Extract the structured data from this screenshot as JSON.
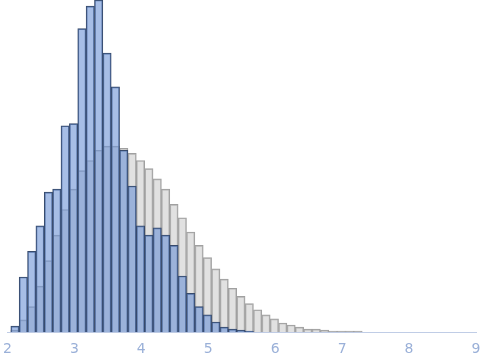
{
  "chart_data": {
    "type": "histogram",
    "bins": [
      2.05,
      2.175,
      2.3,
      2.425,
      2.55,
      2.675,
      2.8,
      2.925,
      3.05,
      3.175,
      3.3,
      3.425,
      3.55,
      3.675,
      3.8,
      3.925,
      4.05,
      4.175,
      4.3,
      4.425,
      4.55,
      4.675,
      4.8,
      4.925,
      5.05,
      5.175,
      5.3,
      5.425,
      5.55,
      5.675,
      5.8,
      5.925,
      6.05,
      6.175,
      6.3,
      6.425,
      6.55,
      6.675,
      6.8,
      6.925,
      7.05,
      7.175,
      7.3,
      7.425
    ],
    "series": [
      {
        "color": "#c8c8c8",
        "values": [
          2,
          12,
          25,
          45,
          70,
          95,
          120,
          140,
          158,
          168,
          178,
          182,
          182,
          180,
          175,
          168,
          160,
          150,
          140,
          125,
          112,
          98,
          85,
          73,
          62,
          52,
          43,
          35,
          28,
          22,
          17,
          13,
          9,
          7,
          5,
          3,
          3,
          2,
          1,
          1,
          1,
          1,
          0
        ]
      },
      {
        "color": "#6d93d6",
        "values": [
          6,
          54,
          79,
          104,
          137,
          140,
          202,
          204,
          297,
          319,
          325,
          273,
          240,
          178,
          143,
          104,
          95,
          102,
          95,
          85,
          55,
          38,
          25,
          17,
          10,
          5,
          3,
          2,
          1,
          0,
          0,
          0,
          0,
          0,
          0,
          0,
          0,
          0,
          0,
          0,
          0,
          0,
          0
        ]
      }
    ],
    "xlim": [
      2,
      9
    ],
    "xticks": [
      2,
      3,
      4,
      5,
      6,
      7,
      8,
      9
    ],
    "ylim": [
      0,
      325
    ],
    "grid": false,
    "tick_labels": "x"
  }
}
